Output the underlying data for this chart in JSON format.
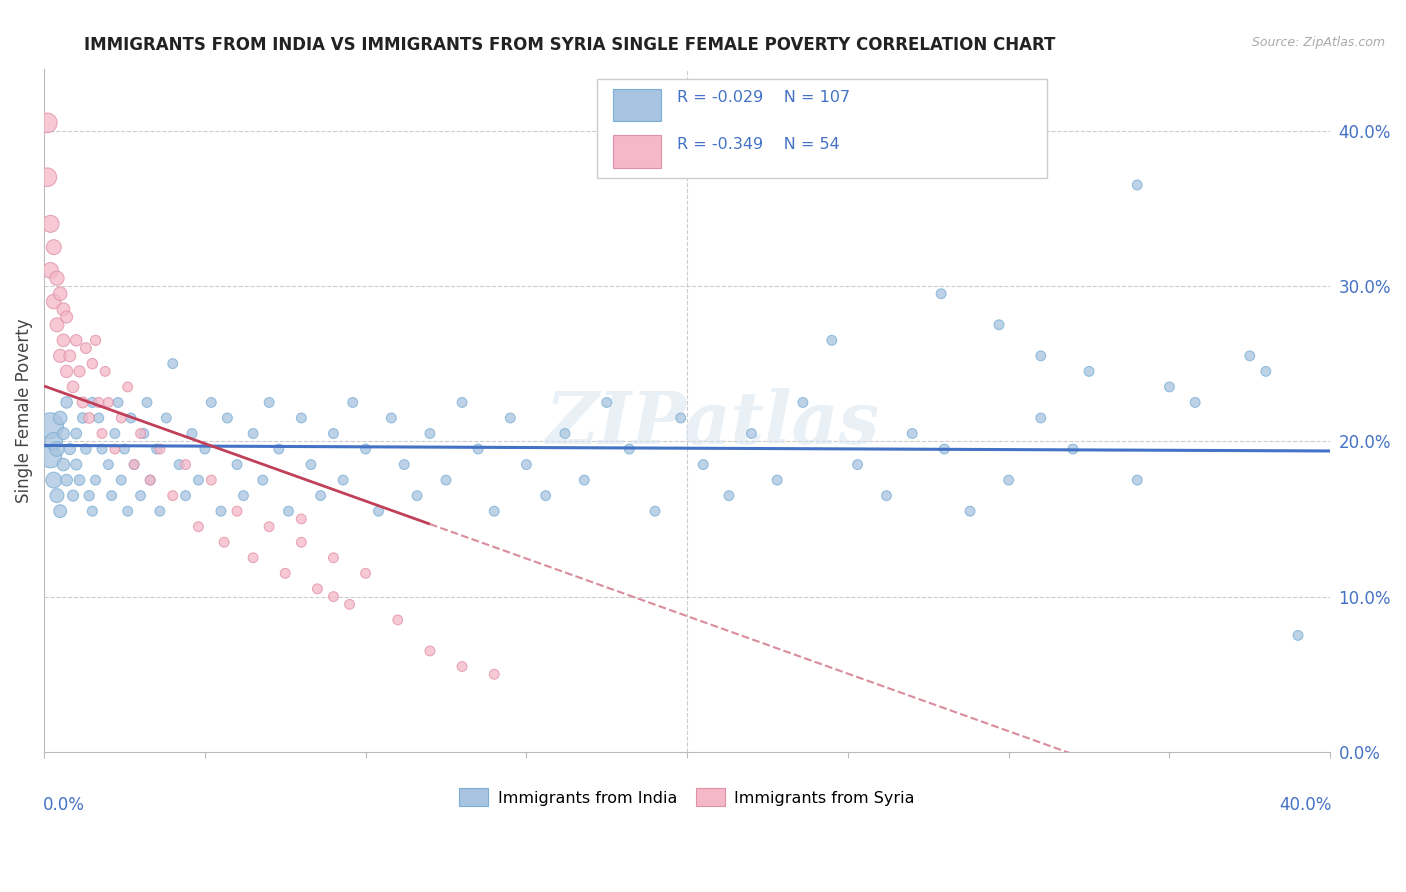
{
  "title": "IMMIGRANTS FROM INDIA VS IMMIGRANTS FROM SYRIA SINGLE FEMALE POVERTY CORRELATION CHART",
  "source": "Source: ZipAtlas.com",
  "ylabel": "Single Female Poverty",
  "legend_india": "Immigrants from India",
  "legend_syria": "Immigrants from Syria",
  "R_india": -0.029,
  "N_india": 107,
  "R_syria": -0.349,
  "N_syria": 54,
  "xlim": [
    0.0,
    0.4
  ],
  "ylim": [
    0.0,
    0.44
  ],
  "yticks": [
    0.0,
    0.1,
    0.2,
    0.3,
    0.4
  ],
  "color_india_fill": "#a8c4e0",
  "color_india_edge": "#7aaed4",
  "color_syria_fill": "#f4b8c8",
  "color_syria_edge": "#e090a8",
  "color_india_line": "#4472c4",
  "color_syria_line": "#c0405a",
  "background": "#ffffff",
  "watermark_text": "ZIPatlas",
  "india_x": [
    0.002,
    0.002,
    0.003,
    0.003,
    0.004,
    0.004,
    0.005,
    0.005,
    0.006,
    0.006,
    0.007,
    0.007,
    0.008,
    0.009,
    0.01,
    0.01,
    0.011,
    0.012,
    0.013,
    0.014,
    0.015,
    0.015,
    0.016,
    0.017,
    0.018,
    0.02,
    0.021,
    0.022,
    0.023,
    0.024,
    0.025,
    0.026,
    0.027,
    0.028,
    0.03,
    0.031,
    0.032,
    0.033,
    0.035,
    0.036,
    0.038,
    0.04,
    0.042,
    0.044,
    0.046,
    0.048,
    0.05,
    0.052,
    0.055,
    0.057,
    0.06,
    0.062,
    0.065,
    0.068,
    0.07,
    0.073,
    0.076,
    0.08,
    0.083,
    0.086,
    0.09,
    0.093,
    0.096,
    0.1,
    0.104,
    0.108,
    0.112,
    0.116,
    0.12,
    0.125,
    0.13,
    0.135,
    0.14,
    0.145,
    0.15,
    0.156,
    0.162,
    0.168,
    0.175,
    0.182,
    0.19,
    0.198,
    0.205,
    0.213,
    0.22,
    0.228,
    0.236,
    0.245,
    0.253,
    0.262,
    0.27,
    0.279,
    0.288,
    0.297,
    0.31,
    0.325,
    0.34,
    0.358,
    0.375,
    0.34,
    0.28,
    0.31,
    0.35,
    0.38,
    0.3,
    0.32,
    0.39
  ],
  "india_y": [
    0.21,
    0.19,
    0.2,
    0.175,
    0.195,
    0.165,
    0.215,
    0.155,
    0.185,
    0.205,
    0.175,
    0.225,
    0.195,
    0.165,
    0.185,
    0.205,
    0.175,
    0.215,
    0.195,
    0.165,
    0.225,
    0.155,
    0.175,
    0.215,
    0.195,
    0.185,
    0.165,
    0.205,
    0.225,
    0.175,
    0.195,
    0.155,
    0.215,
    0.185,
    0.165,
    0.205,
    0.225,
    0.175,
    0.195,
    0.155,
    0.215,
    0.25,
    0.185,
    0.165,
    0.205,
    0.175,
    0.195,
    0.225,
    0.155,
    0.215,
    0.185,
    0.165,
    0.205,
    0.175,
    0.225,
    0.195,
    0.155,
    0.215,
    0.185,
    0.165,
    0.205,
    0.175,
    0.225,
    0.195,
    0.155,
    0.215,
    0.185,
    0.165,
    0.205,
    0.175,
    0.225,
    0.195,
    0.155,
    0.215,
    0.185,
    0.165,
    0.205,
    0.175,
    0.225,
    0.195,
    0.155,
    0.215,
    0.185,
    0.165,
    0.205,
    0.175,
    0.225,
    0.265,
    0.185,
    0.165,
    0.205,
    0.295,
    0.155,
    0.275,
    0.255,
    0.245,
    0.365,
    0.225,
    0.255,
    0.175,
    0.195,
    0.215,
    0.235,
    0.245,
    0.175,
    0.195,
    0.075
  ],
  "india_sizes": [
    350,
    250,
    160,
    130,
    110,
    100,
    95,
    85,
    80,
    75,
    70,
    68,
    65,
    63,
    62,
    60,
    58,
    56,
    55,
    54,
    53,
    52,
    51,
    50,
    50,
    50,
    50,
    50,
    50,
    50,
    50,
    50,
    50,
    50,
    50,
    50,
    50,
    50,
    50,
    50,
    50,
    50,
    50,
    50,
    50,
    50,
    50,
    50,
    50,
    50,
    50,
    50,
    50,
    50,
    50,
    50,
    50,
    50,
    50,
    50,
    50,
    50,
    50,
    50,
    50,
    50,
    50,
    50,
    50,
    50,
    50,
    50,
    50,
    50,
    50,
    50,
    50,
    50,
    50,
    50,
    50,
    50,
    50,
    50,
    50,
    50,
    50,
    50,
    50,
    50,
    50,
    50,
    50,
    50,
    50,
    50,
    50,
    50,
    50,
    50,
    50,
    50,
    50,
    50,
    50,
    50,
    50
  ],
  "syria_x": [
    0.001,
    0.001,
    0.002,
    0.002,
    0.003,
    0.003,
    0.004,
    0.004,
    0.005,
    0.005,
    0.006,
    0.006,
    0.007,
    0.007,
    0.008,
    0.009,
    0.01,
    0.011,
    0.012,
    0.013,
    0.014,
    0.015,
    0.016,
    0.017,
    0.018,
    0.019,
    0.02,
    0.022,
    0.024,
    0.026,
    0.028,
    0.03,
    0.033,
    0.036,
    0.04,
    0.044,
    0.048,
    0.052,
    0.056,
    0.06,
    0.065,
    0.07,
    0.075,
    0.08,
    0.085,
    0.09,
    0.095,
    0.1,
    0.11,
    0.12,
    0.13,
    0.14,
    0.08,
    0.09
  ],
  "syria_y": [
    0.405,
    0.37,
    0.34,
    0.31,
    0.325,
    0.29,
    0.305,
    0.275,
    0.295,
    0.255,
    0.285,
    0.265,
    0.245,
    0.28,
    0.255,
    0.235,
    0.265,
    0.245,
    0.225,
    0.26,
    0.215,
    0.25,
    0.265,
    0.225,
    0.205,
    0.245,
    0.225,
    0.195,
    0.215,
    0.235,
    0.185,
    0.205,
    0.175,
    0.195,
    0.165,
    0.185,
    0.145,
    0.175,
    0.135,
    0.155,
    0.125,
    0.145,
    0.115,
    0.135,
    0.105,
    0.125,
    0.095,
    0.115,
    0.085,
    0.065,
    0.055,
    0.05,
    0.15,
    0.1
  ],
  "syria_sizes": [
    200,
    180,
    150,
    130,
    115,
    110,
    105,
    100,
    95,
    90,
    85,
    82,
    78,
    75,
    72,
    70,
    68,
    65,
    62,
    60,
    58,
    56,
    54,
    52,
    50,
    50,
    50,
    50,
    50,
    50,
    50,
    50,
    50,
    50,
    50,
    50,
    50,
    50,
    50,
    50,
    50,
    50,
    50,
    50,
    50,
    50,
    50,
    50,
    50,
    50,
    50,
    50,
    50,
    50
  ]
}
